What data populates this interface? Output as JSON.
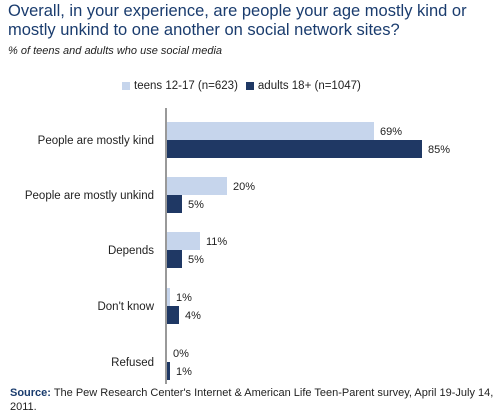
{
  "title": "Overall, in your experience, are people your age mostly kind or mostly unkind to one another on social network sites?",
  "subtitle": "% of teens and adults who use social media",
  "source_label": "Source:",
  "source_text": "The Pew Research Center's Internet & American Life Teen-Parent survey, April 19-July 14, 2011.",
  "colors": {
    "teens": "#c6d5ec",
    "adults": "#1f3864",
    "axis": "#333333",
    "text": "#222222"
  },
  "chart_data": {
    "type": "bar",
    "orientation": "horizontal",
    "categories": [
      "People are mostly kind",
      "People are mostly unkind",
      "Depends",
      "Don't know",
      "Refused"
    ],
    "series": [
      {
        "name": "teens 12-17 (n=623)",
        "values": [
          69,
          20,
          11,
          1,
          0
        ],
        "labels": [
          "69%",
          "20%",
          "11%",
          "1%",
          "0%"
        ]
      },
      {
        "name": "adults 18+ (n=1047)",
        "values": [
          85,
          5,
          5,
          4,
          1
        ],
        "labels": [
          "85%",
          "5%",
          "5%",
          "4%",
          "1%"
        ]
      }
    ],
    "xlim": [
      0,
      100
    ],
    "legend": "top"
  }
}
